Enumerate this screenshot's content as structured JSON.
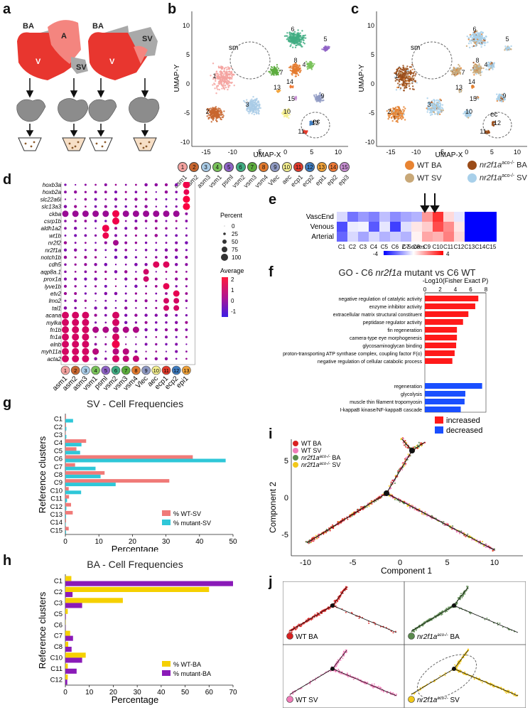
{
  "panels": {
    "a": "a",
    "b": "b",
    "c": "c",
    "d": "d",
    "e": "e",
    "f": "f",
    "g": "g",
    "h": "h",
    "i": "i",
    "j": "j"
  },
  "panel_a": {
    "labels": [
      "BA",
      "A",
      "V",
      "SV",
      "BA",
      "SV",
      "V"
    ],
    "colors": {
      "heart": "#e8362f",
      "atrium": "#f08080",
      "grey": "#a9a9a9"
    }
  },
  "umap_b": {
    "xlabel": "UMAP-X",
    "ylabel": "UMAP-Y",
    "xticks": [
      "-15",
      "-10",
      "-5",
      "0",
      "5",
      "10"
    ],
    "yticks": [
      "10",
      "5",
      "0",
      "-5",
      "-10"
    ],
    "annotations": [
      "sm",
      "ec"
    ],
    "cluster_numbers": [
      "1",
      "2",
      "3",
      "4",
      "5",
      "6",
      "7",
      "8",
      "9",
      "10",
      "11",
      "12",
      "13",
      "14",
      "15"
    ]
  },
  "legend_b": [
    {
      "num": "1",
      "name": "asm1",
      "color": "#f4a3a0"
    },
    {
      "num": "2",
      "name": "asm2",
      "color": "#c8662f"
    },
    {
      "num": "3",
      "name": "asm3",
      "color": "#a9cbe6"
    },
    {
      "num": "4",
      "name": "vsm1",
      "color": "#79c25a"
    },
    {
      "num": "5",
      "name": "psml",
      "color": "#8f63c6"
    },
    {
      "num": "6",
      "name": "vsm2",
      "color": "#41ad83"
    },
    {
      "num": "7",
      "name": "vsm3",
      "color": "#5cab3d"
    },
    {
      "num": "8",
      "name": "vsm4",
      "color": "#e47b2f"
    },
    {
      "num": "9",
      "name": "Vlec",
      "color": "#8f9ac3"
    },
    {
      "num": "10",
      "name": "aec",
      "color": "#f4ef8f"
    },
    {
      "num": "11",
      "name": "ecp1",
      "color": "#e53b2c"
    },
    {
      "num": "12",
      "name": "ecp2",
      "color": "#3f7ec2"
    },
    {
      "num": "13",
      "name": "epi1",
      "color": "#f2a33a"
    },
    {
      "num": "14",
      "name": "epi2",
      "color": "#f07a35"
    },
    {
      "num": "15",
      "name": "epi3",
      "color": "#c88fd3"
    }
  ],
  "umap_c": {
    "xlabel": "UMAP-X",
    "ylabel": "UMAP-Y",
    "xticks": [
      "-15",
      "-10",
      "-5",
      "0",
      "5",
      "10"
    ],
    "yticks": [
      "10",
      "5",
      "0",
      "-5",
      "-10"
    ],
    "annotations": [
      "sm",
      "ec"
    ],
    "legend": [
      {
        "label": "WT BA",
        "color": "#e88432"
      },
      {
        "label": "nr2f1a",
        "sup": "aco-/-",
        "suffix": " BA",
        "color": "#9a4b18"
      },
      {
        "label": "WT SV",
        "color": "#c8a878"
      },
      {
        "label": "nr2f1a",
        "sup": "aco-/-",
        "suffix": " SV",
        "color": "#a8d0ea"
      }
    ]
  },
  "dotplot_d": {
    "genes": [
      "hoxb3a",
      "hoxb2a",
      "slc22a6l",
      "slc13a3",
      "ckba",
      "csrp1b",
      "aldh1a2",
      "wt1b",
      "nr2f2",
      "nr2f1a",
      "notch1b",
      "cdh5",
      "aqp8a.1",
      "prox1a",
      "lyve1b",
      "etv2",
      "lmo2",
      "tal1",
      "acana",
      "mylka",
      "fn1b",
      "fn1a",
      "elnb",
      "myh11a",
      "acta2"
    ],
    "clusters": [
      "asm1",
      "asm2",
      "asm3",
      "vsm1",
      "psml",
      "vsm2",
      "vsm3",
      "vsm4",
      "Vlec",
      "aec",
      "ecp1",
      "ecp2",
      "epi1"
    ],
    "cluster_nums": [
      "1",
      "2",
      "3",
      "4",
      "5",
      "6",
      "7",
      "8",
      "9",
      "10",
      "11",
      "12",
      "13"
    ],
    "size_legend_title": "Percent",
    "size_legend": [
      "0",
      "25",
      "50",
      "75",
      "100"
    ],
    "color_legend_title": "Average",
    "color_legend": [
      "2",
      "1",
      "0",
      "-1"
    ]
  },
  "heatmap_e": {
    "rows": [
      "VascEnd",
      "Venous",
      "Arterial"
    ],
    "cols": [
      "C1",
      "C2",
      "C3",
      "C4",
      "C5",
      "C6",
      "C7",
      "C8",
      "C9",
      "C10",
      "C11",
      "C12",
      "C13",
      "C14",
      "C15"
    ],
    "scale_title": "Z-Scores",
    "scale_min": "-4",
    "scale_max": "4"
  },
  "go_f": {
    "title_prefix": "GO - C6 ",
    "title_gene": "nr2f1a",
    "title_suffix": " mutant vs C6 WT",
    "axis_title": "-Log10(Fisher Exact P)",
    "ticks": [
      "0",
      "2",
      "4",
      "6",
      "8"
    ],
    "legend": [
      {
        "label": "increased",
        "color": "#ff1a1a"
      },
      {
        "label": "decreased",
        "color": "#1a4fff"
      }
    ]
  },
  "chart_data": [
    {
      "type": "bar",
      "title": "GO - C6 nr2f1a mutant vs C6 WT",
      "xlabel": "-Log10(Fisher Exact P)",
      "xlim": [
        0,
        8
      ],
      "categories": [
        "negative regulation of catalytic activity",
        "enzyme inhibitor activity",
        "extracellular matrix structural constituent",
        "peptidase regulator activity",
        "fin regeneration",
        "camera-type eye morphogenesis",
        "glycosaminoglycan binding",
        "proton-transporting ATP synthase complex, coupling factor F(o)",
        "negative regulation of cellular catabolic process",
        "regeneration",
        "glycolysis",
        "muscle thin filament tropomyosin",
        "I-kappaB kinase/NF-kappaB cascade"
      ],
      "values": [
        7.0,
        6.6,
        5.7,
        5.0,
        4.2,
        4.2,
        4.1,
        3.9,
        3.6,
        7.5,
        5.3,
        5.2,
        4.7
      ],
      "direction": [
        "increased",
        "increased",
        "increased",
        "increased",
        "increased",
        "increased",
        "increased",
        "increased",
        "increased",
        "decreased",
        "decreased",
        "decreased",
        "decreased"
      ]
    },
    {
      "type": "bar",
      "title": "SV - Cell Frequencies",
      "xlabel": "Percentage",
      "ylabel": "Reference clusters",
      "xlim": [
        0,
        50
      ],
      "xticks": [
        "0",
        "10",
        "20",
        "30",
        "40",
        "50"
      ],
      "categories": [
        "C1",
        "C2",
        "C3",
        "C4",
        "C5",
        "C6",
        "C7",
        "C8",
        "C9",
        "C10",
        "C11",
        "C12",
        "C13",
        "C14",
        "C15"
      ],
      "series": [
        {
          "name": "% WT-SV",
          "color": "#f07a78",
          "values": [
            0.2,
            0.2,
            0.1,
            6.2,
            3.3,
            38.0,
            2.9,
            11.7,
            31.0,
            1.0,
            1.1,
            1.7,
            2.2,
            0.2,
            1.0
          ]
        },
        {
          "name": "% mutant-SV",
          "color": "#2fc7d8",
          "values": [
            2.3,
            0.3,
            0.3,
            4.8,
            4.4,
            47.8,
            9.0,
            10.5,
            15.0,
            4.7,
            0.5,
            0.3,
            0.2,
            0.1,
            0.2
          ]
        }
      ]
    },
    {
      "type": "bar",
      "title": "BA - Cell Frequencies",
      "xlabel": "Percentage",
      "ylabel": "Reference clusters",
      "xlim": [
        0,
        70
      ],
      "xticks": [
        "0",
        "10",
        "20",
        "30",
        "40",
        "50",
        "60",
        "70"
      ],
      "categories": [
        "C1",
        "C2",
        "C3",
        "C5",
        "C6",
        "C7",
        "C8",
        "C10",
        "C11",
        "C12"
      ],
      "series": [
        {
          "name": "% WT-BA",
          "color": "#f5d000",
          "values": [
            2.5,
            60.0,
            24.0,
            1.0,
            0.1,
            2.0,
            1.2,
            8.5,
            1.0,
            1.0
          ]
        },
        {
          "name": "% mutant-BA",
          "color": "#8a1ab8",
          "values": [
            70.0,
            3.0,
            7.0,
            0.2,
            0.0,
            3.2,
            2.6,
            7.0,
            4.7,
            0.8
          ]
        }
      ]
    }
  ],
  "panel_g": {
    "title": "SV - Cell Frequencies",
    "ylabel": "Reference clusters",
    "xlabel": "Percentage"
  },
  "panel_h": {
    "title": "BA - Cell Frequencies",
    "ylabel": "Reference clusters",
    "xlabel": "Percentage"
  },
  "trajectory_i": {
    "xlabel": "Component 1",
    "ylabel": "Component 2",
    "xticks": [
      "-10",
      "-5",
      "0",
      "5",
      "10"
    ],
    "yticks": [
      "5",
      "0",
      "-5"
    ],
    "legend": [
      {
        "label": "WT BA",
        "color": "#d92020"
      },
      {
        "label": "WT SV",
        "color": "#f07bb8"
      },
      {
        "label": "nr2f1a",
        "sup": "aco-/-",
        "suffix": " BA",
        "color": "#5a8a4e"
      },
      {
        "label": "nr2f1a",
        "sup": "aco-/-",
        "suffix": " SV",
        "color": "#f2c81a"
      }
    ]
  },
  "trajectory_j": {
    "quadrants": [
      {
        "label": "WT BA",
        "color": "#d92020"
      },
      {
        "label": "nr2f1a",
        "sup": "aco-/-",
        "suffix": " BA",
        "color": "#5a8a4e"
      },
      {
        "label": "WT SV",
        "color": "#f07bb8"
      },
      {
        "label": "nr2f1a",
        "sup": "aco-/-",
        "suffix": " SV",
        "color": "#f2c81a"
      }
    ]
  }
}
